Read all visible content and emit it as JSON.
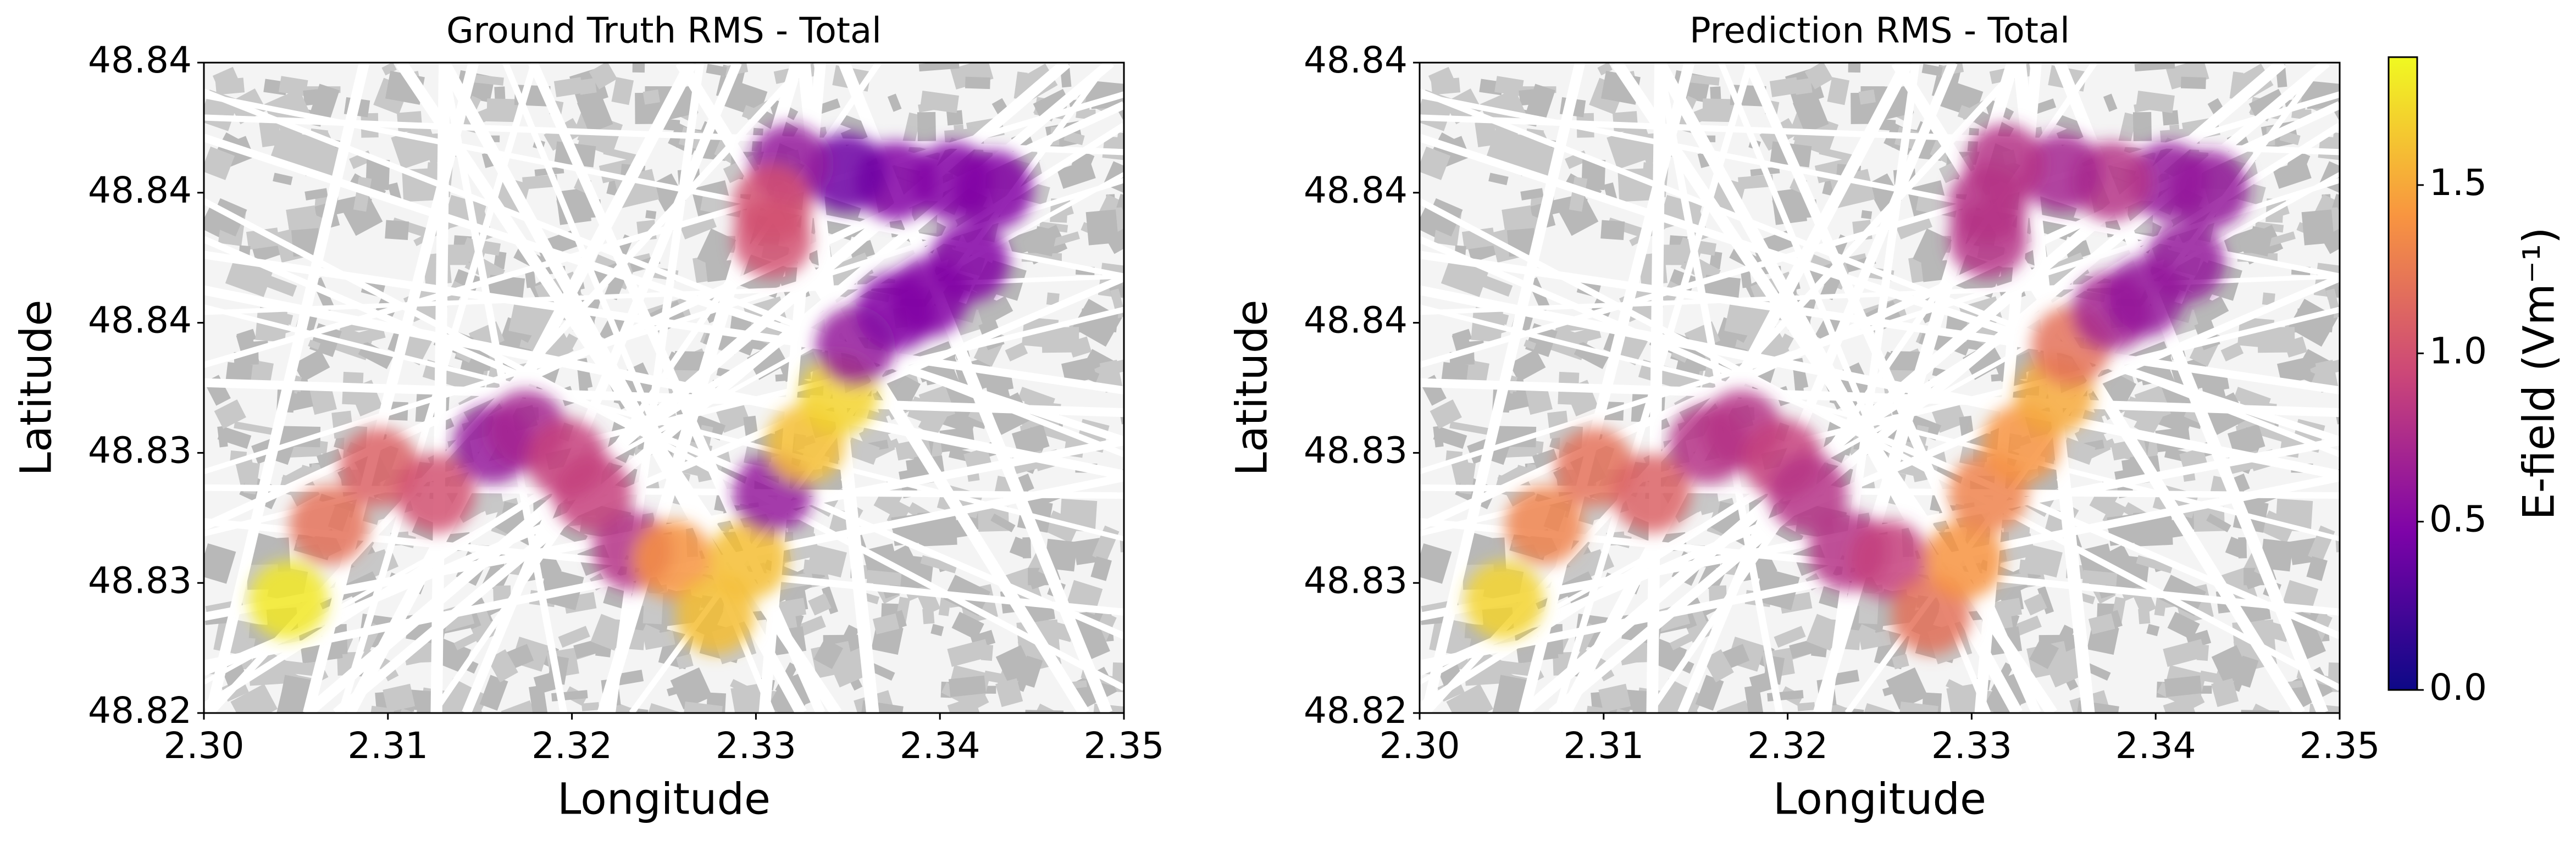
{
  "chart_data": [
    {
      "type": "scatter",
      "title": "Ground Truth RMS - Total",
      "xlabel": "Longitude",
      "ylabel": "Latitude",
      "x": [
        2.3046,
        2.3068,
        2.3095,
        2.3126,
        2.3157,
        2.3175,
        2.3197,
        2.3211,
        2.3233,
        2.3255,
        2.3278,
        2.3296,
        2.3309,
        2.3327,
        2.3345,
        2.3354,
        2.3376,
        2.3394,
        2.3416,
        2.3429,
        2.3407,
        2.3376,
        2.3349,
        2.3318,
        2.3309,
        2.3309
      ],
      "y": [
        48.8259,
        48.8285,
        48.8305,
        48.8296,
        48.8313,
        48.8318,
        48.8308,
        48.8296,
        48.8276,
        48.8273,
        48.8254,
        48.8273,
        48.8296,
        48.8313,
        48.833,
        48.8347,
        48.8359,
        48.8364,
        48.8376,
        48.8401,
        48.8404,
        48.8404,
        48.8407,
        48.841,
        48.8396,
        48.8384
      ],
      "values": [
        1.8,
        1.2,
        1.1,
        1.0,
        0.6,
        0.7,
        0.9,
        0.9,
        0.8,
        1.4,
        1.6,
        1.6,
        0.6,
        1.6,
        1.7,
        0.6,
        0.5,
        0.5,
        0.5,
        0.5,
        0.5,
        0.5,
        0.4,
        0.6,
        1.0,
        1.0
      ],
      "xlim": [
        2.3,
        2.35
      ],
      "xticks": [
        {
          "value": 2.3,
          "label": "2.30"
        },
        2.31,
        2.32,
        2.33,
        2.34,
        2.35
      ],
      "ylim": [
        48.822,
        48.8445
      ],
      "yticks": [
        {
          "value": 48.822,
          "label": "48.82"
        },
        {
          "value": 48.8265,
          "label": "48.83"
        },
        {
          "value": 48.831,
          "label": "48.83"
        },
        {
          "value": 48.8355,
          "label": "48.84"
        },
        {
          "value": 48.84,
          "label": "48.84"
        },
        {
          "value": 48.8445,
          "label": "48.84"
        }
      ]
    },
    {
      "type": "scatter",
      "title": "Prediction RMS - Total",
      "xlabel": "Longitude",
      "ylabel": "Latitude",
      "x": [
        2.3046,
        2.3068,
        2.3095,
        2.3126,
        2.3157,
        2.3175,
        2.3197,
        2.3211,
        2.3233,
        2.3255,
        2.3278,
        2.3296,
        2.3309,
        2.3327,
        2.3345,
        2.3354,
        2.3376,
        2.3394,
        2.3416,
        2.3429,
        2.3407,
        2.3376,
        2.3349,
        2.3318,
        2.3309,
        2.3309
      ],
      "y": [
        48.8259,
        48.8285,
        48.8305,
        48.8296,
        48.8313,
        48.8318,
        48.8308,
        48.8296,
        48.8276,
        48.8273,
        48.8254,
        48.8273,
        48.8296,
        48.8313,
        48.833,
        48.8347,
        48.8359,
        48.8364,
        48.8376,
        48.8401,
        48.8404,
        48.8404,
        48.8407,
        48.841,
        48.8396,
        48.8384
      ],
      "values": [
        1.7,
        1.3,
        1.2,
        1.1,
        0.8,
        0.8,
        0.9,
        0.8,
        0.8,
        0.9,
        1.2,
        1.4,
        1.3,
        1.4,
        1.5,
        1.2,
        0.7,
        0.6,
        0.6,
        0.6,
        0.6,
        0.8,
        0.7,
        0.8,
        0.8,
        0.8
      ],
      "xlim": [
        2.3,
        2.35
      ],
      "xticks": [
        {
          "value": 2.3,
          "label": "2.30"
        },
        2.31,
        2.32,
        2.33,
        2.34,
        2.35
      ],
      "ylim": [
        48.822,
        48.8445
      ],
      "yticks": [
        {
          "value": 48.822,
          "label": "48.82"
        },
        {
          "value": 48.8265,
          "label": "48.83"
        },
        {
          "value": 48.831,
          "label": "48.83"
        },
        {
          "value": 48.8355,
          "label": "48.84"
        },
        {
          "value": 48.84,
          "label": "48.84"
        },
        {
          "value": 48.8445,
          "label": "48.84"
        }
      ]
    }
  ],
  "colorbar": {
    "label": "E-field (Vm⁻¹)",
    "colormap": "plasma",
    "lim": [
      0,
      1.88
    ],
    "ticks": [
      {
        "value": 0,
        "label": "0.0"
      },
      0.5,
      {
        "value": 1,
        "label": "1.0"
      },
      1.5
    ]
  }
}
